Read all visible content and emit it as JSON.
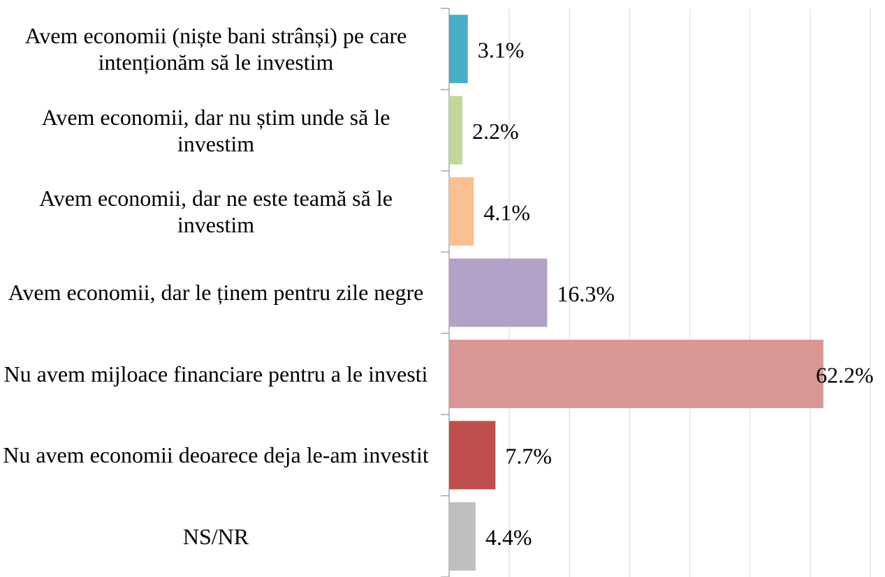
{
  "chart_data": {
    "type": "barh",
    "categories": [
      "Avem economii (niște bani strânși) pe care intenționăm să le investim",
      "Avem economii, dar nu știm unde să le investim",
      "Avem economii, dar ne este teamă să le investim",
      "Avem economii, dar le ținem pentru zile negre",
      "Nu avem mijloace financiare pentru a le investi",
      "Nu avem economii deoarece deja le-am investit",
      "NS/NR"
    ],
    "values": [
      3.1,
      2.2,
      4.1,
      16.3,
      62.2,
      7.7,
      4.4
    ],
    "value_labels": [
      "3.1%",
      "2.2%",
      "4.1%",
      "16.3%",
      "62.2%",
      "7.7%",
      "4.4%"
    ],
    "colors": [
      "#4bacc6",
      "#c3d69b",
      "#fac090",
      "#b3a2c7",
      "#d99694",
      "#c0504d",
      "#bfbfbf"
    ],
    "xlim": [
      0,
      70
    ],
    "xticks": [
      0,
      10,
      20,
      30,
      40,
      50,
      60,
      70
    ],
    "grid": true
  }
}
